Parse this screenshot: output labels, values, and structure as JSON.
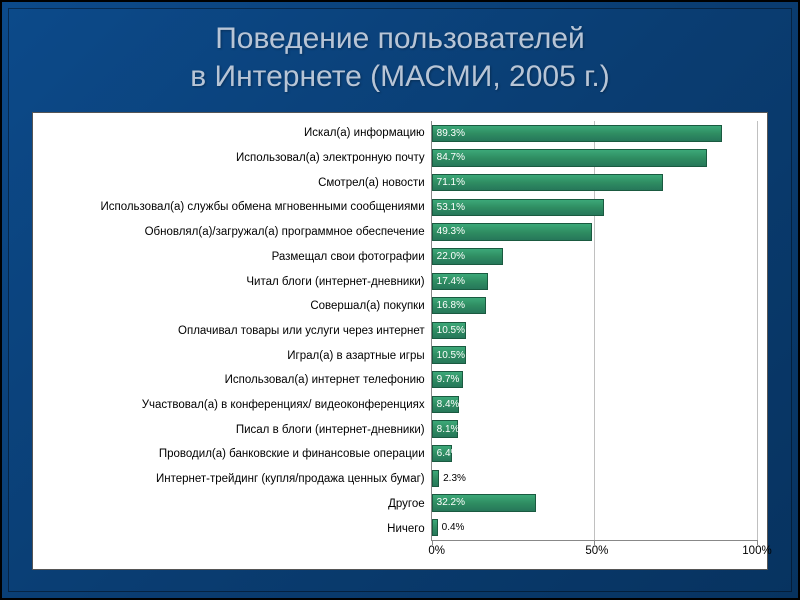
{
  "slide": {
    "title_line1": "Поведение пользователей",
    "title_line2": "в Интернете (МАСМИ, 2005 г.)",
    "background_gradient": [
      "#0c4a8a",
      "#073360"
    ],
    "title_color": "#b8c5d6",
    "title_fontsize": 30
  },
  "chart": {
    "type": "bar-horizontal",
    "xmin": 0,
    "xmax": 100,
    "xtick_step": 50,
    "x_grid": true,
    "xtick_labels": [
      "0%",
      "50%",
      "100%"
    ],
    "bar_fill_gradient": [
      "#3ca878",
      "#26775a"
    ],
    "bar_border": "#1a5a40",
    "grid_color": "#c0c0c0",
    "axis_color": "#888888",
    "background_color": "#ffffff",
    "chart_border": "#555555",
    "label_fontsize": 11.5,
    "value_fontsize": 10,
    "value_label_threshold_inside": 6,
    "items": [
      {
        "label": "Искал(а) информацию",
        "value": 89.3,
        "text": "89.3%"
      },
      {
        "label": "Использовал(а) электронную почту",
        "value": 84.7,
        "text": "84.7%"
      },
      {
        "label": "Смотрел(а) новости",
        "value": 71.1,
        "text": "71.1%"
      },
      {
        "label": "Использовал(а) службы обмена мгновенными сообщениями",
        "value": 53.1,
        "text": "53.1%"
      },
      {
        "label": "Обновлял(а)/загружал(а) программное обеспечение",
        "value": 49.3,
        "text": "49.3%"
      },
      {
        "label": "Размещал свои фотографии",
        "value": 22.0,
        "text": "22.0%"
      },
      {
        "label": "Читал блоги (интернет-дневники)",
        "value": 17.4,
        "text": "17.4%"
      },
      {
        "label": "Совершал(а) покупки",
        "value": 16.8,
        "text": "16.8%"
      },
      {
        "label": "Оплачивал товары или услуги через интернет",
        "value": 10.5,
        "text": "10.5%"
      },
      {
        "label": "Играл(а) в азартные игры",
        "value": 10.5,
        "text": "10.5%"
      },
      {
        "label": "Использовал(а) интернет телефонию",
        "value": 9.7,
        "text": "9.7%"
      },
      {
        "label": "Участвовал(а) в конференциях/ видеоконференциях",
        "value": 8.4,
        "text": "8.4%"
      },
      {
        "label": "Писал в блоги (интернет-дневники)",
        "value": 8.1,
        "text": "8.1%"
      },
      {
        "label": "Проводил(а) банковские и финансовые операции",
        "value": 6.4,
        "text": "6.4%"
      },
      {
        "label": "Интернет-трейдинг (купля/продажа ценных бумаг)",
        "value": 2.3,
        "text": "2.3%"
      },
      {
        "label": "Другое",
        "value": 32.2,
        "text": "32.2%"
      },
      {
        "label": "Ничего",
        "value": 0.4,
        "text": "0.4%"
      }
    ]
  }
}
